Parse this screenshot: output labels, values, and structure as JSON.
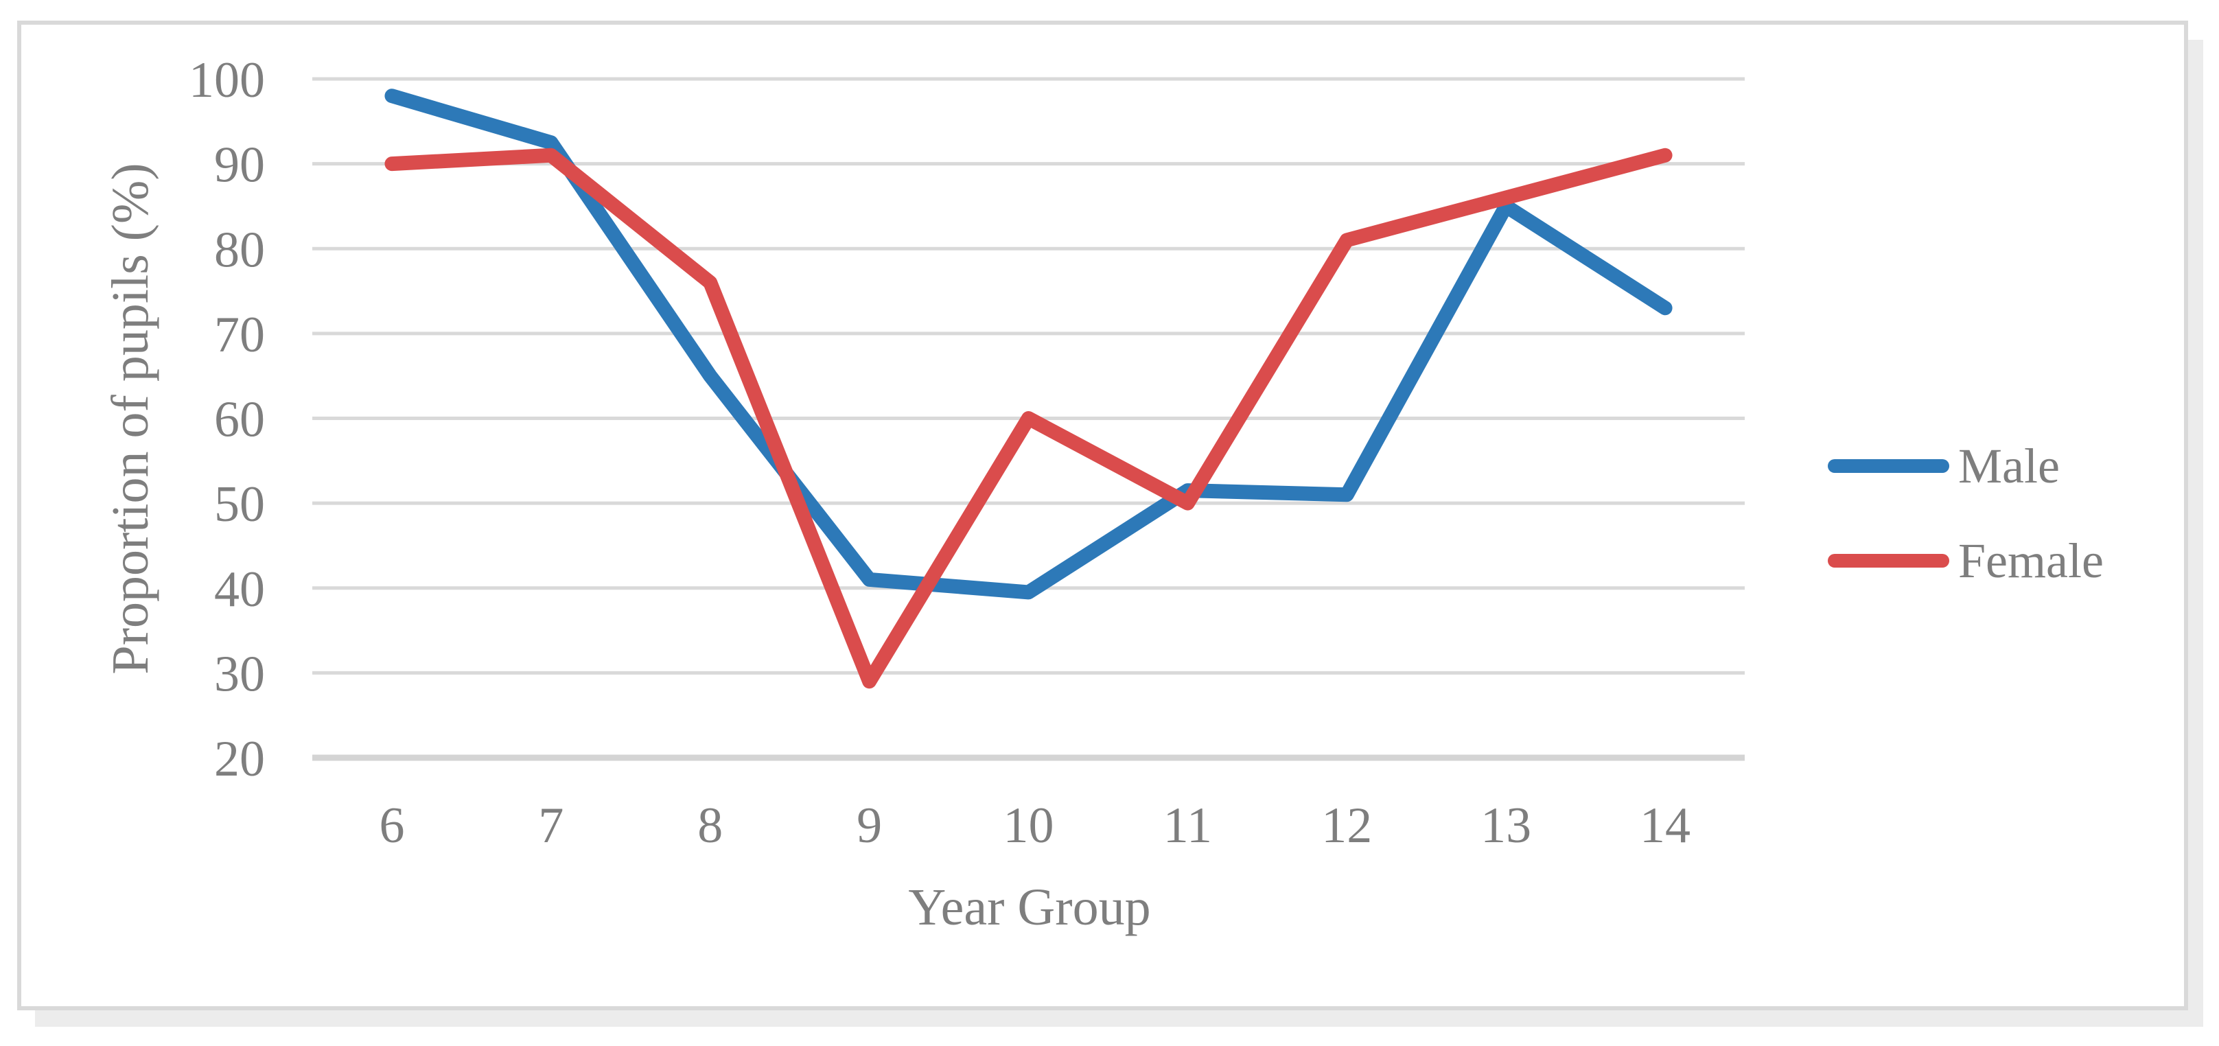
{
  "figure": {
    "background": "#FFFFFF",
    "border_color": "#D9D9D9",
    "shadow_color": "#ECECEC"
  },
  "chart_data": {
    "type": "line",
    "title": "",
    "xlabel": "Year Group",
    "ylabel": "Proportion of pupils (%)",
    "categories": [
      "6",
      "7",
      "8",
      "9",
      "10",
      "11",
      "12",
      "13",
      "14"
    ],
    "series": [
      {
        "name": "Male",
        "color": "#2D79B8",
        "values": [
          98,
          92.5,
          65,
          41,
          39.5,
          51.5,
          51,
          85,
          73
        ]
      },
      {
        "name": "Female",
        "color": "#DA4C4C",
        "values": [
          90,
          91,
          76,
          29,
          60,
          50,
          81,
          86,
          91
        ]
      }
    ],
    "ylim": [
      20,
      100
    ],
    "yticks": [
      20,
      30,
      40,
      50,
      60,
      70,
      80,
      90,
      100
    ],
    "grid": true,
    "gridline_color": "#D9D9D9",
    "axis_line_color": "#D4D4D4",
    "tick_label_color": "#7E7E7E",
    "axis_title_color": "#7E7E7E",
    "legend_position": "right",
    "line_width": 21
  }
}
